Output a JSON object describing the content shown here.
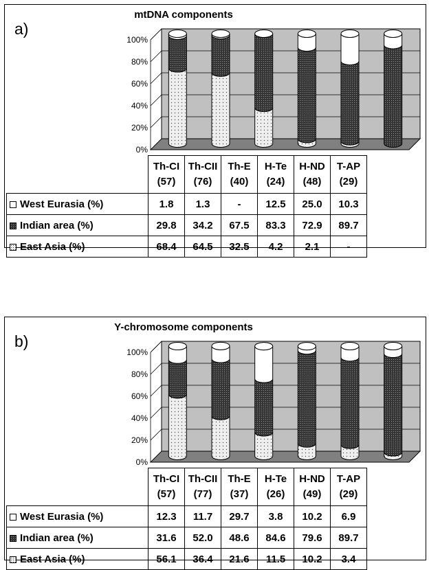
{
  "chart_data": [
    {
      "type": "bar",
      "stacked": true,
      "panel_letter": "a)",
      "title": "mtDNA components",
      "yticks": [
        "0%",
        "20%",
        "40%",
        "60%",
        "80%",
        "100%"
      ],
      "ylim": [
        0,
        100
      ],
      "categories": [
        {
          "name": "Th-CI",
          "n": "(57)"
        },
        {
          "name": "Th-CII",
          "n": "(76)"
        },
        {
          "name": "Th-E",
          "n": "(40)"
        },
        {
          "name": "H-Te",
          "n": "(24)"
        },
        {
          "name": "H-ND",
          "n": "(48)"
        },
        {
          "name": "T-AP",
          "n": "(29)"
        }
      ],
      "series": [
        {
          "name": "West Eurasia (%)",
          "display": [
            "1.8",
            "1.3",
            "-",
            "12.5",
            "25.0",
            "10.3"
          ],
          "values": [
            1.8,
            1.3,
            0,
            12.5,
            25.0,
            10.3
          ]
        },
        {
          "name": "Indian area (%)",
          "display": [
            "29.8",
            "34.2",
            "67.5",
            "83.3",
            "72.9",
            "89.7"
          ],
          "values": [
            29.8,
            34.2,
            67.5,
            83.3,
            72.9,
            89.7
          ]
        },
        {
          "name": "East Asia (%)",
          "display": [
            "68.4",
            "64.5",
            "32.5",
            "4.2",
            "2.1",
            "-"
          ],
          "values": [
            68.4,
            64.5,
            32.5,
            4.2,
            2.1,
            0
          ]
        }
      ],
      "grid": true,
      "legend": "table"
    },
    {
      "type": "bar",
      "stacked": true,
      "panel_letter": "b)",
      "title": "Y-chromosome components",
      "yticks": [
        "0%",
        "20%",
        "40%",
        "60%",
        "80%",
        "100%"
      ],
      "ylim": [
        0,
        100
      ],
      "categories": [
        {
          "name": "Th-CI",
          "n": "(57)"
        },
        {
          "name": "Th-CII",
          "n": "(77)"
        },
        {
          "name": "Th-E",
          "n": "(37)"
        },
        {
          "name": "H-Te",
          "n": "(26)"
        },
        {
          "name": "H-ND",
          "n": "(49)"
        },
        {
          "name": "T-AP",
          "n": "(29)"
        }
      ],
      "series": [
        {
          "name": "West Eurasia (%)",
          "display": [
            "12.3",
            "11.7",
            "29.7",
            "3.8",
            "10.2",
            "6.9"
          ],
          "values": [
            12.3,
            11.7,
            29.7,
            3.8,
            10.2,
            6.9
          ]
        },
        {
          "name": "Indian area (%)",
          "display": [
            "31.6",
            "52.0",
            "48.6",
            "84.6",
            "79.6",
            "89.7"
          ],
          "values": [
            31.6,
            52.0,
            48.6,
            84.6,
            79.6,
            89.7
          ]
        },
        {
          "name": "East Asia (%)",
          "display": [
            "56.1",
            "36.4",
            "21.6",
            "11.5",
            "10.2",
            "3.4"
          ],
          "values": [
            56.1,
            36.4,
            21.6,
            11.5,
            10.2,
            3.4
          ]
        }
      ],
      "grid": true,
      "legend": "table"
    }
  ],
  "colors": {
    "west_eurasia": "#ffffff",
    "indian_area": "#333333",
    "east_asia": "#efefef",
    "plot_wall": "#c0c0c0",
    "plot_floor": "#808080"
  }
}
